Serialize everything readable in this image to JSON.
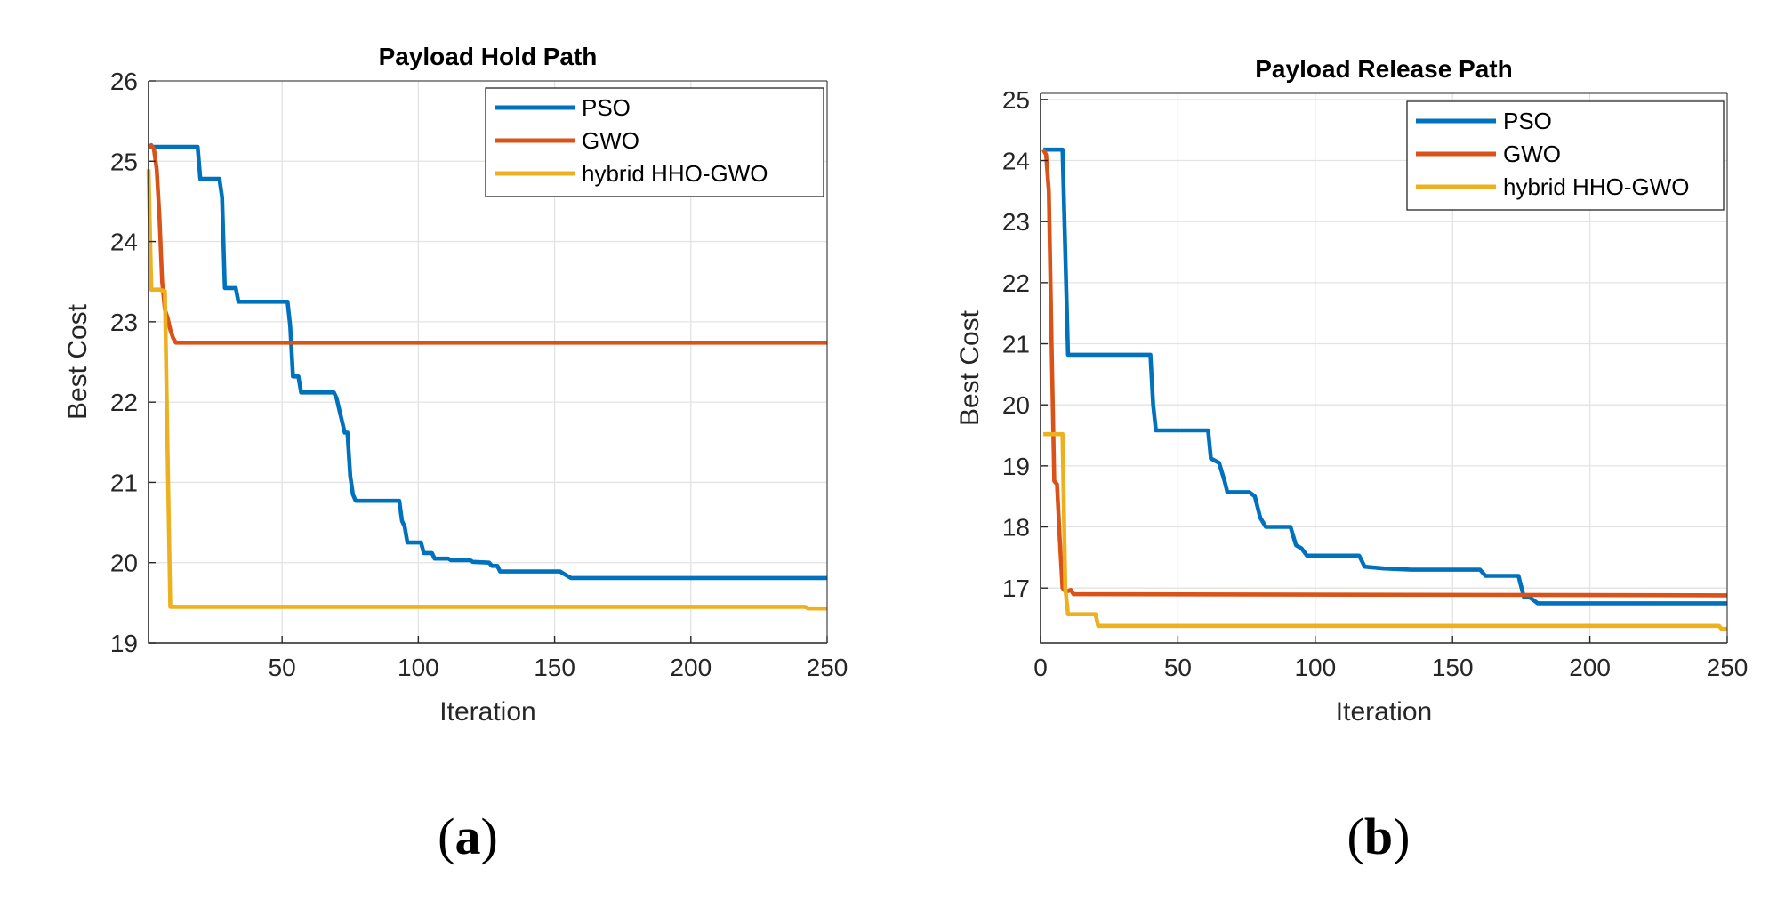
{
  "chart_data": [
    {
      "type": "line",
      "title": "Payload Hold Path",
      "xlabel": "Iteration",
      "ylabel": "Best Cost",
      "caption": "(a)",
      "xlim": [
        1,
        250
      ],
      "ylim": [
        19,
        26
      ],
      "xticks": [
        50,
        100,
        150,
        200,
        250
      ],
      "yticks": [
        19,
        20,
        21,
        22,
        23,
        24,
        25,
        26
      ],
      "grid": true,
      "legend": "top-right",
      "series": [
        {
          "name": "PSO",
          "color": "#0072BD",
          "points": [
            [
              1,
              25.18
            ],
            [
              19,
              25.18
            ],
            [
              20,
              24.78
            ],
            [
              27,
              24.78
            ],
            [
              28,
              24.55
            ],
            [
              29,
              23.42
            ],
            [
              33,
              23.42
            ],
            [
              34,
              23.25
            ],
            [
              52,
              23.25
            ],
            [
              53,
              22.95
            ],
            [
              54,
              22.32
            ],
            [
              56,
              22.32
            ],
            [
              57,
              22.12
            ],
            [
              69,
              22.12
            ],
            [
              70,
              22.05
            ],
            [
              73,
              21.62
            ],
            [
              74,
              21.62
            ],
            [
              75,
              21.08
            ],
            [
              76,
              20.85
            ],
            [
              77,
              20.77
            ],
            [
              93,
              20.77
            ],
            [
              94,
              20.52
            ],
            [
              95,
              20.45
            ],
            [
              96,
              20.25
            ],
            [
              101,
              20.25
            ],
            [
              102,
              20.12
            ],
            [
              105,
              20.12
            ],
            [
              106,
              20.05
            ],
            [
              111,
              20.05
            ],
            [
              112,
              20.03
            ],
            [
              119,
              20.03
            ],
            [
              120,
              20.01
            ],
            [
              126,
              20.0
            ],
            [
              127,
              19.96
            ],
            [
              129,
              19.96
            ],
            [
              130,
              19.89
            ],
            [
              152,
              19.89
            ],
            [
              154,
              19.85
            ],
            [
              156,
              19.81
            ],
            [
              250,
              19.81
            ]
          ]
        },
        {
          "name": "GWO",
          "color": "#D95319",
          "points": [
            [
              1,
              25.18
            ],
            [
              2,
              25.2
            ],
            [
              3,
              25.15
            ],
            [
              4,
              24.9
            ],
            [
              5,
              24.3
            ],
            [
              6,
              23.5
            ],
            [
              7,
              23.15
            ],
            [
              8,
              23.05
            ],
            [
              9,
              22.9
            ],
            [
              10,
              22.8
            ],
            [
              11,
              22.74
            ],
            [
              250,
              22.74
            ]
          ]
        },
        {
          "name": "hybrid HHO-GWO",
          "color": "#EDB120",
          "points": [
            [
              1,
              24.9
            ],
            [
              2,
              23.4
            ],
            [
              5,
              23.4
            ],
            [
              7,
              23.38
            ],
            [
              8,
              21.4
            ],
            [
              9,
              19.45
            ],
            [
              242,
              19.45
            ],
            [
              243,
              19.43
            ],
            [
              250,
              19.43
            ]
          ]
        }
      ]
    },
    {
      "type": "line",
      "title": "Payload Release Path",
      "xlabel": "Iteration",
      "ylabel": "Best Cost",
      "caption": "(b)",
      "xlim": [
        0,
        250
      ],
      "ylim": [
        16.1,
        25.1
      ],
      "xticks": [
        0,
        50,
        100,
        150,
        200,
        250
      ],
      "yticks": [
        17,
        18,
        19,
        20,
        21,
        22,
        23,
        24,
        25
      ],
      "grid": true,
      "legend": "top-right",
      "series": [
        {
          "name": "PSO",
          "color": "#0072BD",
          "points": [
            [
              1,
              24.18
            ],
            [
              8,
              24.18
            ],
            [
              9,
              22.5
            ],
            [
              10,
              20.82
            ],
            [
              40,
              20.82
            ],
            [
              41,
              20.0
            ],
            [
              42,
              19.58
            ],
            [
              61,
              19.58
            ],
            [
              62,
              19.12
            ],
            [
              65,
              19.05
            ],
            [
              67,
              18.75
            ],
            [
              68,
              18.57
            ],
            [
              76,
              18.57
            ],
            [
              78,
              18.5
            ],
            [
              80,
              18.15
            ],
            [
              82,
              18.0
            ],
            [
              91,
              18.0
            ],
            [
              93,
              17.7
            ],
            [
              95,
              17.65
            ],
            [
              97,
              17.53
            ],
            [
              116,
              17.53
            ],
            [
              118,
              17.35
            ],
            [
              125,
              17.32
            ],
            [
              135,
              17.3
            ],
            [
              160,
              17.3
            ],
            [
              162,
              17.2
            ],
            [
              174,
              17.2
            ],
            [
              176,
              16.85
            ],
            [
              178,
              16.85
            ],
            [
              181,
              16.75
            ],
            [
              250,
              16.75
            ]
          ]
        },
        {
          "name": "GWO",
          "color": "#D95319",
          "points": [
            [
              1,
              24.18
            ],
            [
              2,
              24.1
            ],
            [
              3,
              23.5
            ],
            [
              4,
              21.0
            ],
            [
              5,
              18.75
            ],
            [
              6,
              18.7
            ],
            [
              7,
              17.8
            ],
            [
              8,
              17.0
            ],
            [
              9,
              16.95
            ],
            [
              10,
              16.95
            ],
            [
              11,
              16.97
            ],
            [
              12,
              16.9
            ],
            [
              250,
              16.88
            ]
          ]
        },
        {
          "name": "hybrid HHO-GWO",
          "color": "#EDB120",
          "points": [
            [
              1,
              19.52
            ],
            [
              8,
              19.52
            ],
            [
              9,
              17.0
            ],
            [
              10,
              16.57
            ],
            [
              20,
              16.57
            ],
            [
              21,
              16.38
            ],
            [
              247,
              16.38
            ],
            [
              248,
              16.33
            ],
            [
              250,
              16.33
            ]
          ]
        }
      ]
    }
  ]
}
